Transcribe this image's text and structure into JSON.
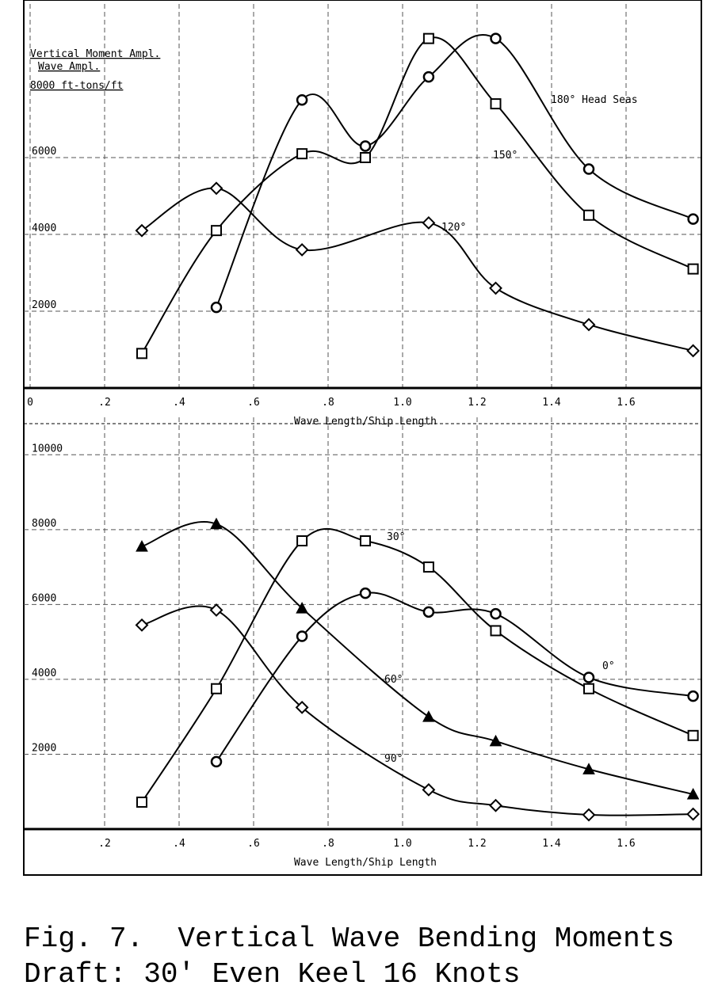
{
  "caption": [
    "Fig. 7.  Vertical Wave Bending Moments",
    "Draft: 30' Even Keel 16 Knots"
  ],
  "chart_data": [
    {
      "type": "line",
      "y_label_lines": [
        "Vertical Moment Ampl.",
        "Wave Ampl.",
        "8000 ft-tons/ft"
      ],
      "x_label": "Wave Length/Ship Length",
      "xlim": [
        0,
        1.8
      ],
      "ylim": [
        0,
        10000
      ],
      "xticks": [
        0,
        {
          "value": 0.2,
          "label": ".2"
        },
        {
          "value": 0.4,
          "label": ".4"
        },
        {
          "value": 0.6,
          "label": ".6"
        },
        {
          "value": 0.8,
          "label": ".8"
        },
        {
          "value": 1,
          "label": "1.0"
        },
        1.2,
        1.4,
        1.6
      ],
      "yticks": [
        2000,
        4000,
        6000
      ],
      "grid": true,
      "series": [
        {
          "name": "180° Head Seas",
          "color": "#000000",
          "marker": "circle",
          "x": [
            0.5,
            0.73,
            0.9,
            1.07,
            1.25,
            1.5,
            1.78
          ],
          "values": [
            2100,
            7500,
            6300,
            8100,
            9100,
            5700,
            4400
          ]
        },
        {
          "name": "150°",
          "color": "#000000",
          "marker": "square",
          "x": [
            0.3,
            0.5,
            0.73,
            0.9,
            1.07,
            1.25,
            1.5,
            1.78
          ],
          "values": [
            900,
            4100,
            6100,
            6000,
            9100,
            7400,
            4500,
            3100
          ]
        },
        {
          "name": "120°",
          "color": "#000000",
          "marker": "diamond",
          "x": [
            0.3,
            0.5,
            0.73,
            1.07,
            1.25,
            1.5,
            1.78
          ],
          "values": [
            4100,
            5200,
            3600,
            4300,
            2600,
            1650,
            970
          ]
        }
      ]
    },
    {
      "type": "line",
      "x_label": "Wave Length/Ship Length",
      "xlim": [
        0,
        1.8
      ],
      "ylim": [
        0,
        11000
      ],
      "xticks": [
        {
          "value": 0.2,
          "label": ".2"
        },
        {
          "value": 0.4,
          "label": ".4"
        },
        {
          "value": 0.6,
          "label": ".6"
        },
        {
          "value": 0.8,
          "label": ".8"
        },
        {
          "value": 1,
          "label": "1.0"
        },
        1.2,
        1.4,
        1.6
      ],
      "yticks": [
        2000,
        4000,
        6000,
        8000,
        10000
      ],
      "grid": true,
      "series": [
        {
          "name": "30°",
          "color": "#000000",
          "marker": "square",
          "x": [
            0.3,
            0.5,
            0.73,
            0.9,
            1.07,
            1.25,
            1.5,
            1.78
          ],
          "values": [
            720,
            3750,
            7700,
            7700,
            7000,
            5300,
            3750,
            2500
          ]
        },
        {
          "name": "0°",
          "color": "#000000",
          "marker": "circle",
          "x": [
            0.5,
            0.73,
            0.9,
            1.07,
            1.25,
            1.5,
            1.78
          ],
          "values": [
            1800,
            5150,
            6300,
            5800,
            5750,
            4050,
            3550
          ]
        },
        {
          "name": "60°",
          "color": "#000000",
          "marker": "triangle",
          "x": [
            0.3,
            0.5,
            0.73,
            1.07,
            1.25,
            1.5,
            1.78
          ],
          "values": [
            7550,
            8150,
            5900,
            3000,
            2350,
            1600,
            930
          ]
        },
        {
          "name": "90°",
          "color": "#000000",
          "marker": "diamond",
          "x": [
            0.3,
            0.5,
            0.73,
            1.07,
            1.25,
            1.5,
            1.78
          ],
          "values": [
            5450,
            5850,
            3250,
            1050,
            630,
            380,
            400
          ]
        }
      ]
    }
  ]
}
